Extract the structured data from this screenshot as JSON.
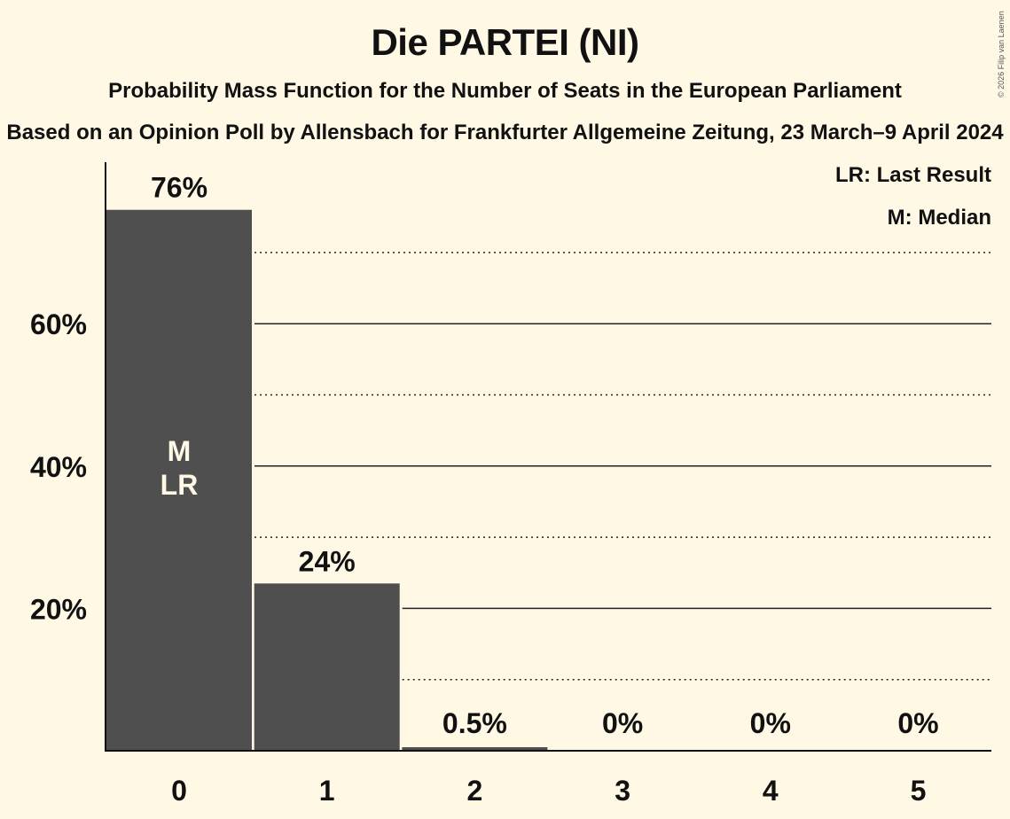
{
  "title": "Die PARTEI (NI)",
  "subtitle": "Probability Mass Function for the Number of Seats in the European Parliament",
  "subtitle2": "Based on an Opinion Poll by Allensbach for Frankfurter Allgemeine Zeitung, 23 March–9 April 2024",
  "copyright": "© 2026 Filip van Laenen",
  "legend": {
    "last_result": "LR: Last Result",
    "median": "M: Median"
  },
  "colors": {
    "background": "#fff8e5",
    "bar": "#4f4f4f",
    "text": "#111111",
    "bar_label_inside": "#fff8e5"
  },
  "chart_data": {
    "type": "bar",
    "title": "Die PARTEI (NI)",
    "subtitle": "Probability Mass Function for the Number of Seats in the European Parliament",
    "xlabel": "",
    "ylabel": "",
    "categories": [
      "0",
      "1",
      "2",
      "3",
      "4",
      "5"
    ],
    "values": [
      76,
      23.5,
      0.5,
      0,
      0,
      0
    ],
    "value_labels": [
      "76%",
      "24%",
      "0.5%",
      "0%",
      "0%",
      "0%"
    ],
    "ylim": [
      0,
      80
    ],
    "yticks": [
      20,
      40,
      60
    ],
    "ytick_labels": [
      "20%",
      "40%",
      "60%"
    ],
    "minor_gridlines": [
      10,
      30,
      50,
      70
    ],
    "grid": true,
    "annotations": [
      {
        "category": "0",
        "text": "M",
        "meaning": "Median"
      },
      {
        "category": "0",
        "text": "LR",
        "meaning": "Last Result"
      }
    ],
    "legend_position": "top-right"
  }
}
